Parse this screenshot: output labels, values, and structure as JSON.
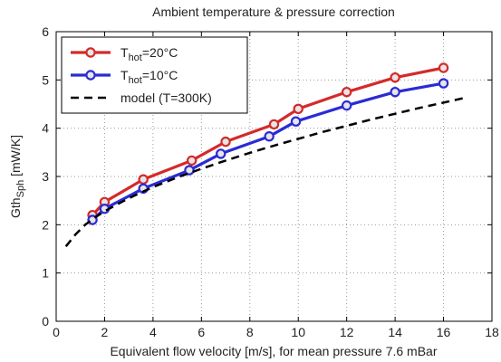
{
  "chart_data": {
    "type": "line",
    "title": "Ambient temperature & pressure correction",
    "xlabel": "Equivalent flow velocity [m/s], for mean pressure 7.6 mBar",
    "ylabel_main": "Gth",
    "ylabel_sub": "Sph",
    "ylabel_unit": " [mW/K]",
    "xlim": [
      0,
      18
    ],
    "ylim": [
      0,
      6
    ],
    "x_ticks": [
      "0",
      "2",
      "4",
      "6",
      "8",
      "10",
      "12",
      "14",
      "16",
      "18"
    ],
    "y_ticks": [
      "0",
      "1",
      "2",
      "3",
      "4",
      "5",
      "6"
    ],
    "grid": "dotted",
    "legend_position": "top-left",
    "series": [
      {
        "legend_main": "T",
        "legend_sub": "hot",
        "legend_rest": "=20°C",
        "color": "#d42a2a",
        "style": "solid-with-circles",
        "x": [
          1.5,
          2.0,
          3.6,
          5.6,
          7.0,
          9.0,
          10.0,
          12.0,
          14.0,
          16.0
        ],
        "y": [
          2.2,
          2.47,
          2.94,
          3.33,
          3.72,
          4.08,
          4.4,
          4.75,
          5.05,
          5.25
        ]
      },
      {
        "legend_main": "T",
        "legend_sub": "hot",
        "legend_rest": "=10°C",
        "color": "#2b2bd4",
        "style": "solid-with-circles",
        "x": [
          1.5,
          2.0,
          3.6,
          5.5,
          6.8,
          8.8,
          9.9,
          12.0,
          14.0,
          16.0
        ],
        "y": [
          2.1,
          2.33,
          2.75,
          3.13,
          3.47,
          3.83,
          4.14,
          4.47,
          4.75,
          4.93
        ]
      },
      {
        "legend_main": "model (T=300K)",
        "legend_sub": "",
        "legend_rest": "",
        "color": "#000000",
        "style": "dashed",
        "x": [
          0.4,
          0.8,
          1.2,
          1.6,
          2.0,
          3.0,
          4.0,
          5.0,
          6.0,
          7.0,
          8.0,
          9.0,
          10.0,
          11.0,
          12.0,
          13.0,
          14.0,
          15.0,
          16.0,
          16.8
        ],
        "y": [
          1.55,
          1.8,
          2.0,
          2.15,
          2.28,
          2.55,
          2.78,
          2.98,
          3.16,
          3.33,
          3.49,
          3.64,
          3.78,
          3.92,
          4.05,
          4.18,
          4.3,
          4.42,
          4.53,
          4.62
        ]
      }
    ]
  }
}
